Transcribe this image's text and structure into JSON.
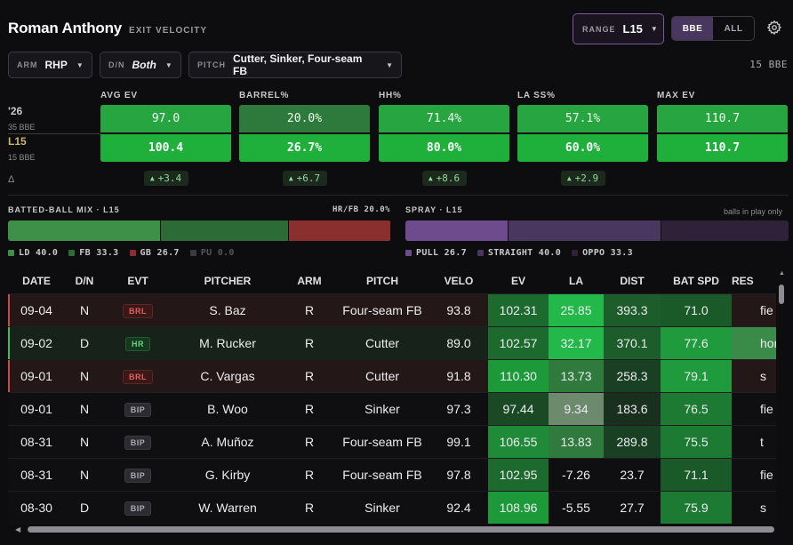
{
  "header": {
    "player": "Roman Anthony",
    "subtitle": "EXIT VELOCITY"
  },
  "range": {
    "label": "RANGE",
    "value": "L15"
  },
  "mode": {
    "bbe": "BBE",
    "all": "ALL",
    "active": "BBE"
  },
  "filters": [
    {
      "label": "ARM",
      "value": "RHP"
    },
    {
      "label": "D/N",
      "value": "Both"
    },
    {
      "label": "PITCH",
      "value": "Cutter, Sinker, Four-seam FB"
    }
  ],
  "bbe_total": "15 BBE",
  "rows_labels": {
    "season": "'26",
    "season_sub": "35 BBE",
    "recent": "L15",
    "recent_sub": "15 BBE",
    "delta": "Δ"
  },
  "stats": [
    {
      "name": "AVG EV",
      "season": "97.0",
      "recent": "100.4",
      "delta": "+3.4"
    },
    {
      "name": "BARREL%",
      "season": "20.0%",
      "recent": "26.7%",
      "delta": "+6.7"
    },
    {
      "name": "HH%",
      "season": "71.4%",
      "recent": "80.0%",
      "delta": "+8.6"
    },
    {
      "name": "LA SS%",
      "season": "57.1%",
      "recent": "60.0%",
      "delta": "+2.9"
    },
    {
      "name": "MAX EV",
      "season": "110.7",
      "recent": "110.7",
      "delta": ""
    }
  ],
  "batted_ball": {
    "title": "BATTED-BALL MIX · L15",
    "hrfb": "HR/FB 20.0%",
    "segments": [
      {
        "key": "LD",
        "value": 40.0,
        "label": "LD 40.0",
        "color": "#3e8f48"
      },
      {
        "key": "FB",
        "value": 33.3,
        "label": "FB 33.3",
        "color": "#2c6a36"
      },
      {
        "key": "GB",
        "value": 26.7,
        "label": "GB 26.7",
        "color": "#8a2e2e"
      },
      {
        "key": "PU",
        "value": 0.0,
        "label": "PU 0.0",
        "color": "#3a3a40"
      }
    ]
  },
  "spray": {
    "title": "SPRAY · L15",
    "note": "balls in play only",
    "segments": [
      {
        "key": "PULL",
        "value": 26.7,
        "label": "PULL 26.7",
        "color": "#6e4b8c"
      },
      {
        "key": "STRAIGHT",
        "value": 40.0,
        "label": "STRAIGHT 40.0",
        "color": "#4a3760"
      },
      {
        "key": "OPPO",
        "value": 33.3,
        "label": "OPPO 33.3",
        "color": "#2f2238"
      }
    ]
  },
  "table": {
    "columns": [
      "DATE",
      "D/N",
      "EVT",
      "PITCHER",
      "ARM",
      "PITCH",
      "VELO",
      "EV",
      "LA",
      "DIST",
      "BAT SPD",
      "RES"
    ],
    "rows": [
      {
        "date": "09-04",
        "dn": "N",
        "evt": "BRL",
        "pitcher": "S. Baz",
        "arm": "R",
        "pitch": "Four-seam FB",
        "velo": "93.8",
        "ev": "102.31",
        "la": "25.85",
        "dist": "393.3",
        "batspd": "71.0",
        "res": "fie"
      },
      {
        "date": "09-02",
        "dn": "D",
        "evt": "HR",
        "pitcher": "M. Rucker",
        "arm": "R",
        "pitch": "Cutter",
        "velo": "89.0",
        "ev": "102.57",
        "la": "32.17",
        "dist": "370.1",
        "batspd": "77.6",
        "res": "hor"
      },
      {
        "date": "09-01",
        "dn": "N",
        "evt": "BRL",
        "pitcher": "C. Vargas",
        "arm": "R",
        "pitch": "Cutter",
        "velo": "91.8",
        "ev": "110.30",
        "la": "13.73",
        "dist": "258.3",
        "batspd": "79.1",
        "res": "s"
      },
      {
        "date": "09-01",
        "dn": "N",
        "evt": "BIP",
        "pitcher": "B. Woo",
        "arm": "R",
        "pitch": "Sinker",
        "velo": "97.3",
        "ev": "97.44",
        "la": "9.34",
        "dist": "183.6",
        "batspd": "76.5",
        "res": "fie"
      },
      {
        "date": "08-31",
        "dn": "N",
        "evt": "BIP",
        "pitcher": "A. Muñoz",
        "arm": "R",
        "pitch": "Four-seam FB",
        "velo": "99.1",
        "ev": "106.55",
        "la": "13.83",
        "dist": "289.8",
        "batspd": "75.5",
        "res": "t"
      },
      {
        "date": "08-31",
        "dn": "N",
        "evt": "BIP",
        "pitcher": "G. Kirby",
        "arm": "R",
        "pitch": "Four-seam FB",
        "velo": "97.8",
        "ev": "102.95",
        "la": "-7.26",
        "dist": "23.7",
        "batspd": "71.1",
        "res": "fie"
      },
      {
        "date": "08-30",
        "dn": "D",
        "evt": "BIP",
        "pitcher": "W. Warren",
        "arm": "R",
        "pitch": "Sinker",
        "velo": "92.4",
        "ev": "108.96",
        "la": "-5.55",
        "dist": "27.7",
        "batspd": "75.9",
        "res": "s"
      }
    ]
  }
}
